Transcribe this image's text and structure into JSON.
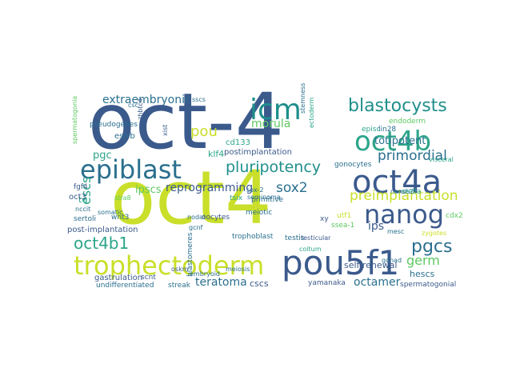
{
  "wordcloud": {
    "words": [
      {
        "text": "oct-4",
        "color": "#3b5a8c"
      },
      {
        "text": "oct4",
        "color": "#c9df2a"
      },
      {
        "text": "trophectoderm",
        "color": "#c9df2a"
      },
      {
        "text": "pou5f1",
        "color": "#3b5a8c"
      },
      {
        "text": "oct4a",
        "color": "#3b5a8c"
      },
      {
        "text": "icm",
        "color": "#1f8f8b"
      },
      {
        "text": "oct4b",
        "color": "#2ca58a"
      },
      {
        "text": "epiblast",
        "color": "#2a6f8e"
      },
      {
        "text": "nanog",
        "color": "#3b5a8c"
      },
      {
        "text": "blastocysts",
        "color": "#1f8f8b"
      },
      {
        "text": "pluripotency",
        "color": "#1f8f8b"
      },
      {
        "text": "oct4b1",
        "color": "#2ca58a"
      },
      {
        "text": "pgcs",
        "color": "#2a6f8e"
      },
      {
        "text": "preimplantation",
        "color": "#c9df2a"
      },
      {
        "text": "primordial",
        "color": "#2a6f8e"
      },
      {
        "text": "morula",
        "color": "#5ec962"
      },
      {
        "text": "sox2",
        "color": "#2a6f8e"
      },
      {
        "text": "reprogramming",
        "color": "#3b5a8c"
      },
      {
        "text": "teratoma",
        "color": "#2a6f8e"
      },
      {
        "text": "totipotent",
        "color": "#2a6f8e"
      },
      {
        "text": "extraembryonic",
        "color": "#2a6f8e"
      },
      {
        "text": "pou",
        "color": "#c9df2a"
      },
      {
        "text": "escs",
        "color": "#2ca58a"
      },
      {
        "text": "ipscs",
        "color": "#5ec962"
      },
      {
        "text": "germ",
        "color": "#5ec962"
      },
      {
        "text": "ips",
        "color": "#3b5a8c"
      },
      {
        "text": "pgc",
        "color": "#2ca58a"
      },
      {
        "text": "octamer",
        "color": "#2a6f8e"
      },
      {
        "text": "hescs",
        "color": "#2a6f8e"
      },
      {
        "text": "self-renewal",
        "color": "#3b5a8c"
      },
      {
        "text": "postimplantation",
        "color": "#3b5a8c"
      },
      {
        "text": "klf4",
        "color": "#2ca58a"
      },
      {
        "text": "cd133",
        "color": "#2ca58a"
      },
      {
        "text": "esrrb",
        "color": "#2a6f8e"
      },
      {
        "text": "cscs",
        "color": "#3b5a8c"
      },
      {
        "text": "yamanaka",
        "color": "#3b5a8c"
      },
      {
        "text": "spermatogonial",
        "color": "#3b5a8c"
      },
      {
        "text": "undifferentiated",
        "color": "#2a6f8e"
      },
      {
        "text": "streak",
        "color": "#2a6f8e"
      },
      {
        "text": "gastrulation",
        "color": "#3b5a8c"
      },
      {
        "text": "scnt",
        "color": "#3b5a8c"
      },
      {
        "text": "oskm",
        "color": "#3b5a8c"
      },
      {
        "text": "testis",
        "color": "#2a6f8e"
      },
      {
        "text": "trophoblast",
        "color": "#2a6f8e"
      },
      {
        "text": "post-implantation",
        "color": "#3b5a8c"
      },
      {
        "text": "nodal",
        "color": "#2a6f8e"
      },
      {
        "text": "oocytes",
        "color": "#3b5a8c"
      },
      {
        "text": "meiotic",
        "color": "#2a6f8e"
      },
      {
        "text": "primitive",
        "color": "#2a6f8e"
      },
      {
        "text": "sox-2",
        "color": "#2a6f8e"
      },
      {
        "text": "seminoma",
        "color": "#2a6f8e"
      },
      {
        "text": "coitum",
        "color": "#2ca58a"
      },
      {
        "text": "testicular",
        "color": "#3b5a8c"
      },
      {
        "text": "gonad",
        "color": "#2a6f8e"
      },
      {
        "text": "stella",
        "color": "#2ca58a"
      },
      {
        "text": "nanos2",
        "color": "#2a6f8e"
      },
      {
        "text": "episc",
        "color": "#2ca58a"
      },
      {
        "text": "lin28",
        "color": "#2a6f8e"
      },
      {
        "text": "endoderm",
        "color": "#5ec962"
      },
      {
        "text": "gonocytes",
        "color": "#2a6f8e"
      },
      {
        "text": "utf1",
        "color": "#c9df2a"
      },
      {
        "text": "ssea-1",
        "color": "#5ec962"
      },
      {
        "text": "zygotes",
        "color": "#c9df2a"
      },
      {
        "text": "xy",
        "color": "#3b5a8c"
      },
      {
        "text": "mesc",
        "color": "#2a6f8e"
      },
      {
        "text": "cdx2",
        "color": "#5ec962"
      },
      {
        "text": "fgf4",
        "color": "#3b5a8c"
      },
      {
        "text": "te",
        "color": "#2ca58a"
      },
      {
        "text": "oct3",
        "color": "#3b5a8c"
      },
      {
        "text": "nccit",
        "color": "#2a6f8e"
      },
      {
        "text": "sertoli",
        "color": "#2a6f8e"
      },
      {
        "text": "somatic",
        "color": "#2a6f8e"
      },
      {
        "text": "wnt3",
        "color": "#2a6f8e"
      },
      {
        "text": "stra8",
        "color": "#5ec962"
      },
      {
        "text": "tsix",
        "color": "#2ca58a"
      },
      {
        "text": "zhbtc4",
        "color": "#3b5a8c"
      },
      {
        "text": "xist",
        "color": "#3b5a8c"
      },
      {
        "text": "csc",
        "color": "#2a6f8e"
      },
      {
        "text": "sscs",
        "color": "#2a6f8e"
      },
      {
        "text": "stemness",
        "color": "#2a6f8e"
      },
      {
        "text": "ectoderm",
        "color": "#2ca58a"
      },
      {
        "text": "blastomeres",
        "color": "#2a6f8e"
      },
      {
        "text": "embryoid",
        "color": "#2a6f8e"
      },
      {
        "text": "meiosis",
        "color": "#2a6f8e"
      },
      {
        "text": "gcnf",
        "color": "#2a6f8e"
      },
      {
        "text": "spermatogonia",
        "color": "#5ec962"
      },
      {
        "text": "pseudogenes",
        "color": "#2a6f8e"
      },
      {
        "text": "visceral",
        "color": "#2ca58a"
      }
    ]
  }
}
